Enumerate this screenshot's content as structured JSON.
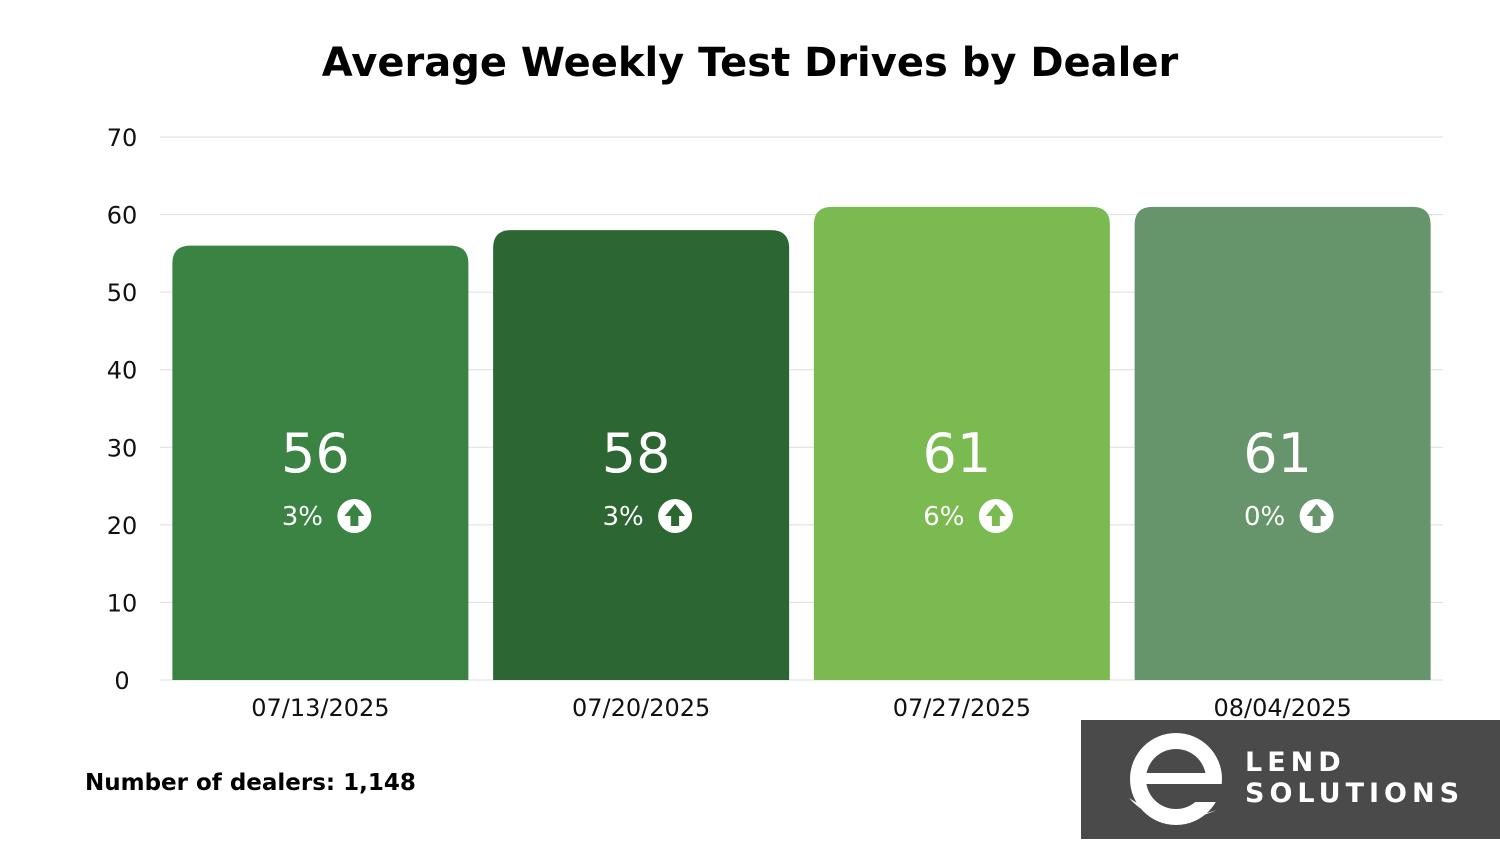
{
  "chart_data": {
    "type": "bar",
    "title": "Average Weekly Test Drives by Dealer",
    "categories": [
      "07/13/2025",
      "07/20/2025",
      "07/27/2025",
      "08/04/2025"
    ],
    "values": [
      56,
      58,
      61,
      61
    ],
    "value_labels": [
      "56",
      "58",
      "61",
      "61"
    ],
    "change_labels": [
      "3%",
      "3%",
      "6%",
      "0%"
    ],
    "change_direction": [
      "up",
      "up",
      "up",
      "up"
    ],
    "bar_colors": [
      "#3b8342",
      "#2c6633",
      "#7aba51",
      "#66956b"
    ],
    "ylim": [
      0,
      70
    ],
    "yticks": [
      0,
      10,
      20,
      30,
      40,
      50,
      60,
      70
    ],
    "xlabel": "",
    "ylabel": "",
    "grid": true
  },
  "footnote": "Number of dealers: 1,148",
  "logo": {
    "line1": "LEND",
    "line2": "SOLUTIONS",
    "icon": "e-letter-logo-icon",
    "background": "#4a4a4a"
  }
}
